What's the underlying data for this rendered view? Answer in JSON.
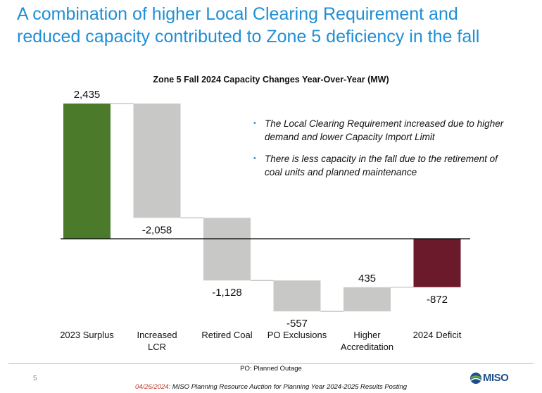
{
  "slide": {
    "title_line1": "A combination of higher Local Clearing Requirement and",
    "title_line2": "reduced capacity contributed to Zone 5 deficiency in the fall",
    "page_number": "5",
    "footnote": "PO: Planned Outage",
    "source_date": "04/26/2024:",
    "source_text": " MISO Planning Resource Auction for Planning Year 2024-2025 Results Posting",
    "logo_text": "MISO",
    "bullets": [
      "The Local Clearing Requirement increased due to higher demand and lower Capacity Import Limit",
      "There is less capacity in the fall due to the retirement of coal units and planned maintenance"
    ]
  },
  "colors": {
    "title": "#1f8fd6",
    "positive_total": "#4a7a2a",
    "negative_total": "#6b1a2c",
    "change": "#c8c8c6",
    "connector": "#bdbdbd",
    "baseline": "#000000"
  },
  "chart_data": {
    "type": "bar",
    "subtype": "waterfall",
    "title": "Zone 5 Fall 2024 Capacity Changes Year-Over-Year (MW)",
    "categories": [
      "2023 Surplus",
      "Increased LCR",
      "Retired Coal",
      "PO Exclusions",
      "Higher Accreditation",
      "2024 Deficit"
    ],
    "category_lines": [
      [
        "2023 Surplus"
      ],
      [
        "Increased",
        "LCR"
      ],
      [
        "Retired Coal"
      ],
      [
        "PO Exclusions"
      ],
      [
        "Higher",
        "Accreditation"
      ],
      [
        "2024 Deficit"
      ]
    ],
    "values": [
      2435,
      -2058,
      -1128,
      -557,
      435,
      -872
    ],
    "value_labels": [
      "2,435",
      "-2,058",
      "-1,128",
      "-557",
      "435",
      "-872"
    ],
    "kinds": [
      "total",
      "change",
      "change",
      "change",
      "change",
      "total"
    ],
    "ylim": [
      -1300,
      2500
    ],
    "xlabel": "",
    "ylabel": "",
    "grid": false,
    "legend": "none"
  }
}
